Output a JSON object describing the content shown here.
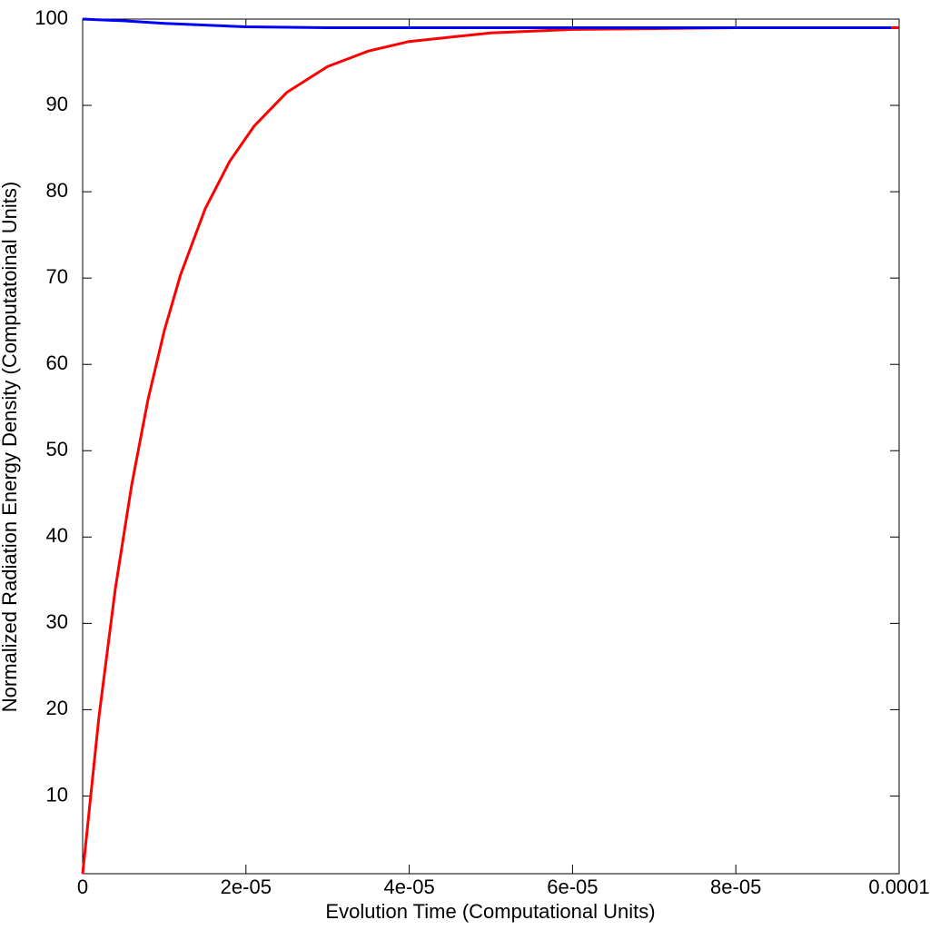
{
  "chart_data": {
    "type": "line",
    "xlabel": "Evolution Time (Computational Units)",
    "ylabel": "Normalized Radiation Energy Density (Computatoinal Units)",
    "xlim": [
      0,
      0.0001
    ],
    "ylim": [
      1,
      100
    ],
    "xticks": [
      0,
      {
        "value": 2e-05,
        "label": "2e-05"
      },
      {
        "value": 4e-05,
        "label": "4e-05"
      },
      {
        "value": 6e-05,
        "label": "6e-05"
      },
      {
        "value": 8e-05,
        "label": "8e-05"
      },
      0.0001
    ],
    "yticks": [
      10,
      20,
      30,
      40,
      50,
      60,
      70,
      80,
      90,
      100
    ],
    "series": [
      {
        "color": "#ff0000",
        "x": [
          0,
          2e-06,
          4e-06,
          6e-06,
          8e-06,
          1e-05,
          1.2e-05,
          1.5e-05,
          1.8e-05,
          2.1e-05,
          2.5e-05,
          3e-05,
          3.5e-05,
          4e-05,
          5e-05,
          6e-05,
          7e-05,
          8e-05,
          9e-05,
          0.0001
        ],
        "values": [
          1,
          19.2,
          34.0,
          46.0,
          55.9,
          63.9,
          70.4,
          78.0,
          83.5,
          87.6,
          91.5,
          94.5,
          96.3,
          97.4,
          98.4,
          98.8,
          98.9,
          99.0,
          99.0,
          99.0
        ]
      },
      {
        "color": "#0000ff",
        "x": [
          0,
          5e-06,
          1e-05,
          1.5e-05,
          2e-05,
          3e-05,
          4e-05,
          6e-05,
          8e-05,
          9.9e-05
        ],
        "values": [
          100,
          99.8,
          99.5,
          99.3,
          99.1,
          99.0,
          99.0,
          99.0,
          99.0,
          99.0
        ]
      }
    ]
  }
}
